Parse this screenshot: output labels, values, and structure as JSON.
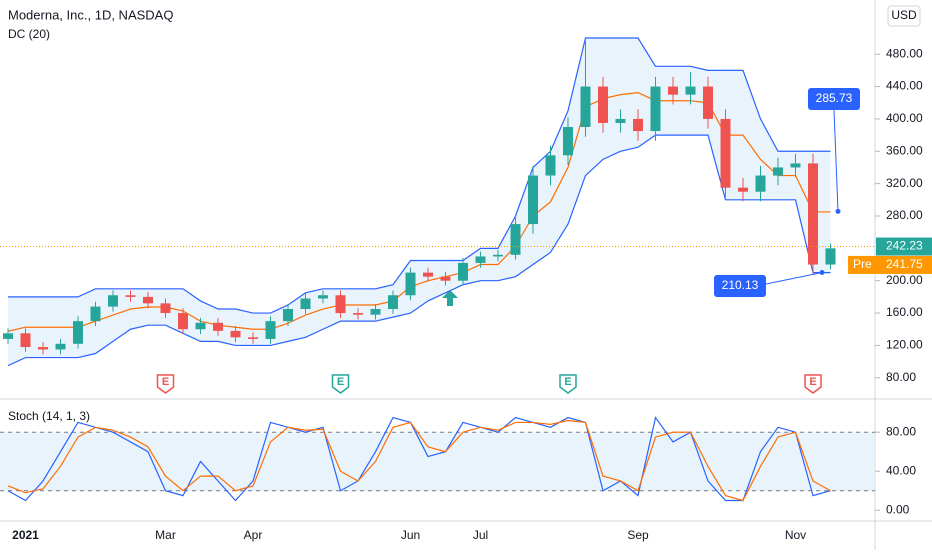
{
  "header": {
    "title": "Moderna, Inc., 1D, NASDAQ",
    "indicator": "DC (20)",
    "currency": "USD"
  },
  "chart_data": [
    {
      "type": "candlestick",
      "categories": [
        null,
        "2021",
        null,
        null,
        null,
        null,
        null,
        null,
        null,
        "Mar",
        null,
        null,
        null,
        null,
        "Apr",
        null,
        null,
        null,
        null,
        null,
        null,
        null,
        null,
        "Jun",
        null,
        null,
        null,
        "Jul",
        null,
        null,
        null,
        null,
        null,
        null,
        null,
        null,
        "Sep",
        null,
        null,
        null,
        null,
        null,
        null,
        null,
        null,
        "Nov",
        null,
        null
      ],
      "open": [
        128,
        135,
        118,
        115,
        122,
        150,
        168,
        182,
        180,
        172,
        160,
        140,
        148,
        138,
        130,
        128,
        150,
        165,
        178,
        182,
        160,
        158,
        165,
        182,
        210,
        205,
        200,
        222,
        230,
        232,
        270,
        330,
        355,
        390,
        440,
        395,
        400,
        385,
        440,
        430,
        440,
        400,
        315,
        310,
        330,
        340,
        345,
        220
      ],
      "high": [
        141,
        141,
        124,
        128,
        156,
        174,
        188,
        188,
        186,
        178,
        166,
        154,
        154,
        144,
        136,
        156,
        171,
        184,
        188,
        188,
        166,
        171,
        188,
        216,
        216,
        211,
        228,
        236,
        238,
        282,
        342,
        367,
        402,
        497,
        452,
        412,
        412,
        452,
        452,
        458,
        452,
        412,
        327,
        342,
        352,
        357,
        357,
        246
      ],
      "low": [
        122,
        112,
        109,
        109,
        116,
        144,
        162,
        174,
        166,
        154,
        134,
        134,
        132,
        124,
        122,
        122,
        144,
        159,
        172,
        154,
        152,
        152,
        159,
        176,
        199,
        194,
        194,
        216,
        224,
        226,
        258,
        318,
        343,
        378,
        383,
        383,
        373,
        373,
        418,
        418,
        388,
        303,
        298,
        298,
        318,
        328,
        208,
        214
      ],
      "close": [
        135,
        118,
        115,
        122,
        150,
        168,
        182,
        180,
        172,
        160,
        140,
        148,
        138,
        130,
        128,
        150,
        165,
        178,
        182,
        160,
        158,
        165,
        182,
        210,
        205,
        200,
        222,
        230,
        232,
        270,
        330,
        355,
        390,
        440,
        395,
        400,
        385,
        440,
        430,
        440,
        400,
        315,
        310,
        330,
        340,
        345,
        220,
        240
      ],
      "up_color": "#26a69a",
      "down_color": "#ef5350",
      "dc_upper": {
        "color": "#2962ff",
        "values": [
          180,
          180,
          180,
          180,
          180,
          190,
          190,
          190,
          190,
          190,
          190,
          175,
          165,
          165,
          160,
          160,
          170,
          185,
          190,
          190,
          190,
          190,
          195,
          225,
          225,
          225,
          225,
          240,
          240,
          280,
          340,
          360,
          410,
          500,
          500,
          500,
          500,
          465,
          465,
          465,
          460,
          460,
          460,
          400,
          360,
          360,
          360,
          360
        ]
      },
      "dc_lower": {
        "color": "#2962ff",
        "values": [
          95,
          105,
          105,
          105,
          105,
          110,
          125,
          140,
          145,
          145,
          135,
          125,
          125,
          120,
          120,
          120,
          125,
          130,
          140,
          150,
          150,
          150,
          155,
          160,
          175,
          185,
          195,
          200,
          200,
          205,
          220,
          235,
          270,
          330,
          350,
          360,
          365,
          380,
          380,
          380,
          380,
          300,
          300,
          300,
          300,
          300,
          210,
          210
        ]
      },
      "dc_basis": {
        "color": "#ff6d00",
        "values": [
          137.5,
          142.5,
          142.5,
          142.5,
          142.5,
          150,
          157.5,
          165,
          167.5,
          167.5,
          162.5,
          150,
          145,
          142.5,
          140,
          140,
          147.5,
          157.5,
          165,
          170,
          170,
          170,
          175,
          192.5,
          200,
          205,
          210,
          220,
          220,
          242.5,
          280,
          297.5,
          340,
          415,
          425,
          430,
          432.5,
          422.5,
          422.5,
          422.5,
          420,
          380,
          380,
          350,
          330,
          330,
          285,
          285
        ]
      },
      "band_color": "#e3f0fb",
      "earnings": [
        null,
        null,
        null,
        null,
        null,
        null,
        null,
        null,
        null,
        {
          "label": "E",
          "color": "#ef5350"
        },
        null,
        null,
        null,
        null,
        null,
        null,
        null,
        null,
        null,
        {
          "label": "E",
          "color": "#26a69a"
        },
        null,
        null,
        null,
        null,
        null,
        null,
        null,
        null,
        null,
        null,
        null,
        null,
        {
          "label": "E",
          "color": "#26a69a"
        },
        null,
        null,
        null,
        null,
        null,
        null,
        null,
        null,
        null,
        null,
        null,
        null,
        null,
        {
          "label": "E",
          "color": "#ef5350"
        },
        null
      ],
      "ylim": [
        55,
        547
      ],
      "yticks": [
        {
          "value": 80,
          "label": "80.00"
        },
        {
          "value": 120,
          "label": "120.00"
        },
        {
          "value": 160,
          "label": "160.00"
        },
        {
          "value": 200,
          "label": "200.00"
        },
        {
          "value": 280,
          "label": "280.00"
        },
        {
          "value": 320,
          "label": "320.00"
        },
        {
          "value": 360,
          "label": "360.00"
        },
        {
          "value": 400,
          "label": "400.00"
        },
        {
          "value": 440,
          "label": "440.00"
        },
        {
          "value": 480,
          "label": "480.00"
        }
      ],
      "last_price": 242.23,
      "last_price_color": "#26a69a",
      "pre_label": "Pre",
      "pre_price": 241.75,
      "pre_color": "#ff9800",
      "callouts": [
        285.73,
        210.13
      ],
      "callout_color": "#2962ff"
    },
    {
      "type": "line",
      "title": "Stoch (14, 1, 3)",
      "series": [
        {
          "color": "#2962ff",
          "values": [
            20,
            10,
            30,
            60,
            90,
            85,
            80,
            70,
            60,
            20,
            15,
            50,
            30,
            10,
            30,
            90,
            85,
            80,
            85,
            20,
            30,
            60,
            95,
            90,
            55,
            60,
            90,
            85,
            80,
            95,
            90,
            85,
            95,
            90,
            20,
            30,
            15,
            95,
            70,
            80,
            30,
            10,
            10,
            60,
            85,
            80,
            15,
            20
          ]
        },
        {
          "color": "#ff6d00",
          "values": [
            25,
            18,
            22,
            45,
            75,
            85,
            82,
            75,
            65,
            35,
            20,
            35,
            35,
            20,
            25,
            70,
            85,
            82,
            83,
            40,
            30,
            50,
            85,
            90,
            65,
            60,
            80,
            85,
            82,
            90,
            90,
            88,
            92,
            90,
            35,
            30,
            20,
            75,
            80,
            80,
            45,
            15,
            10,
            45,
            75,
            80,
            30,
            20
          ]
        }
      ],
      "bands": [
        20,
        80
      ],
      "band_color": "#e3f0fb",
      "ylim": [
        -10,
        113
      ],
      "yticks": [
        {
          "value": 0,
          "label": "0.00"
        },
        {
          "value": 40,
          "label": "40.00"
        },
        {
          "value": 80,
          "label": "80.00"
        }
      ]
    }
  ]
}
